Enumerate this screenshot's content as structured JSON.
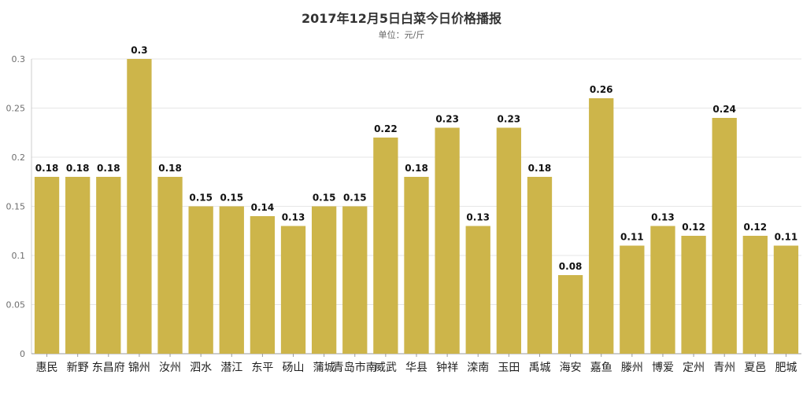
{
  "chart_data": {
    "type": "bar",
    "title": "2017年12月5日白菜今日价格播报",
    "subtitle": "单位：元/斤",
    "xlabel": "",
    "ylabel": "",
    "ylim": [
      0,
      0.3
    ],
    "yticks": [
      "0",
      "0.05",
      "0.1",
      "0.15",
      "0.2",
      "0.25",
      "0.3"
    ],
    "grid": true,
    "bar_color": "#cdb54a",
    "categories": [
      "惠民",
      "新野",
      "东昌府",
      "锦州",
      "汝州",
      "泗水",
      "潜江",
      "东平",
      "砀山",
      "蒲城",
      "青岛市南",
      "威武",
      "华县",
      "钟祥",
      "滦南",
      "玉田",
      "禹城",
      "海安",
      "嘉鱼",
      "滕州",
      "博爱",
      "定州",
      "青州",
      "夏邑",
      "肥城"
    ],
    "values": [
      0.18,
      0.18,
      0.18,
      0.3,
      0.18,
      0.15,
      0.15,
      0.14,
      0.13,
      0.15,
      0.15,
      0.22,
      0.18,
      0.23,
      0.13,
      0.23,
      0.18,
      0.08,
      0.26,
      0.11,
      0.13,
      0.12,
      0.24,
      0.12,
      0.11
    ],
    "data_labels": [
      "0.18",
      "0.18",
      "0.18",
      "0.3",
      "0.18",
      "0.15",
      "0.15",
      "0.14",
      "0.13",
      "0.15",
      "0.15",
      "0.22",
      "0.18",
      "0.23",
      "0.13",
      "0.23",
      "0.18",
      "0.08",
      "0.26",
      "0.11",
      "0.13",
      "0.12",
      "0.24",
      "0.12",
      "0.11"
    ]
  }
}
